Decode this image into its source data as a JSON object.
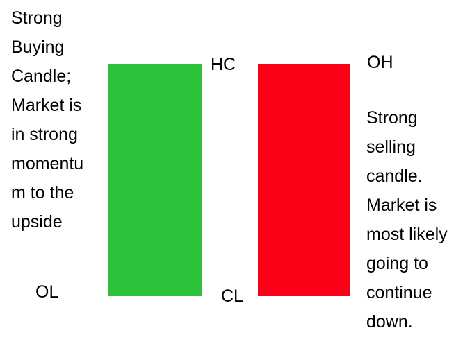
{
  "colors": {
    "background": "#ffffff",
    "buying_candle": "#2ec23a",
    "selling_candle": "#fb0017",
    "text": "#000000"
  },
  "diagram": {
    "buying_candle": {
      "top_label": "HC",
      "bottom_label": "OL",
      "description_lines": [
        "Strong",
        "Buying",
        "Candle;",
        "Market is",
        "in strong",
        "momentu",
        "m to the",
        "upside"
      ]
    },
    "selling_candle": {
      "top_label": "OH",
      "bottom_label": "CL",
      "description_lines": [
        "Strong",
        "selling",
        "candle.",
        "Market is",
        "most likely",
        "going to",
        "continue",
        "down."
      ]
    }
  }
}
